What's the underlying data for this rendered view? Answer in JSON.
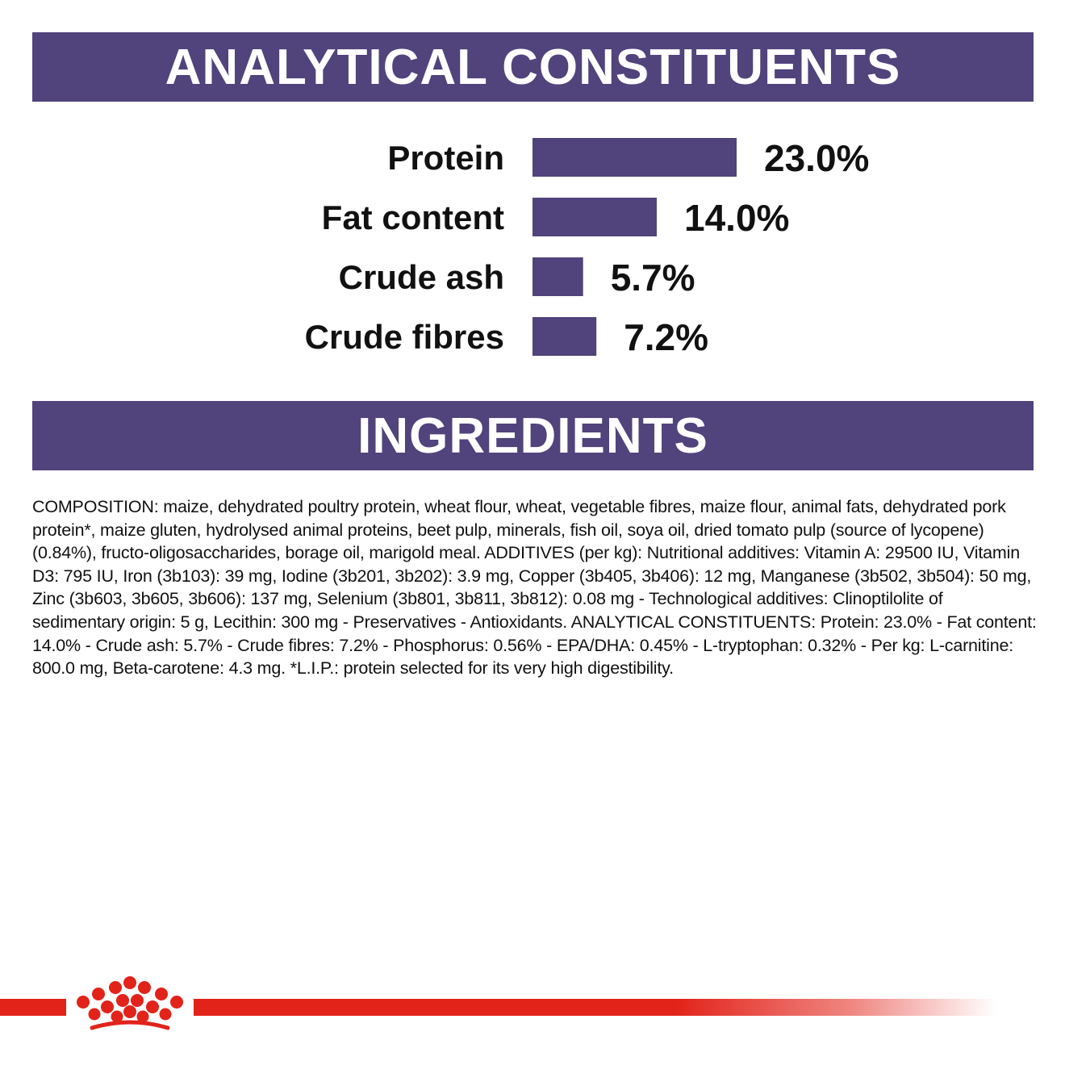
{
  "sections": {
    "analytical_title": "ANALYTICAL CONSTITUENTS",
    "ingredients_title": "INGREDIENTS"
  },
  "colors": {
    "banner": "#51437c",
    "bar": "#51437c",
    "brand_red": "#e2231a"
  },
  "chart_data": {
    "type": "bar",
    "orientation": "horizontal",
    "categories": [
      "Protein",
      "Fat content",
      "Crude ash",
      "Crude fibres"
    ],
    "values": [
      23.0,
      14.0,
      5.7,
      7.2
    ],
    "value_labels": [
      "23.0%",
      "14.0%",
      "5.7%",
      "7.2%"
    ],
    "unit": "%",
    "xlim": [
      0,
      23.0
    ],
    "grid": false,
    "legend": "none"
  },
  "ingredients": {
    "text": "COMPOSITION: maize, dehydrated poultry protein, wheat flour, wheat, vegetable fibres, maize flour, animal fats, dehydrated pork protein*, maize gluten, hydrolysed animal proteins, beet pulp, minerals, fish oil, soya oil, dried tomato pulp (source of lycopene) (0.84%), fructo-oligosaccharides, borage oil, marigold meal. ADDITIVES (per kg): Nutritional additives: Vitamin A: 29500 IU, Vitamin D3: 795 IU, Iron (3b103): 39 mg, Iodine (3b201, 3b202): 3.9 mg, Copper (3b405, 3b406): 12 mg, Manganese (3b502, 3b504): 50 mg, Zinc (3b603, 3b605, 3b606): 137 mg, Selenium (3b801, 3b811, 3b812): 0.08 mg - Technological additives: Clinoptilolite of sedimentary origin: 5 g, Lecithin: 300 mg - Preservatives - Antioxidants. ANALYTICAL CONSTITUENTS: Protein: 23.0% - Fat content: 14.0% - Crude ash: 5.7% - Crude fibres: 7.2% - Phosphorus: 0.56% - EPA/DHA: 0.45% - L-tryptophan: 0.32% - Per kg: L-carnitine: 800.0 mg, Beta-carotene: 4.3 mg. *L.I.P.: protein selected for its very high digestibility."
  },
  "brand": {
    "logo_icon": "crown-icon"
  }
}
